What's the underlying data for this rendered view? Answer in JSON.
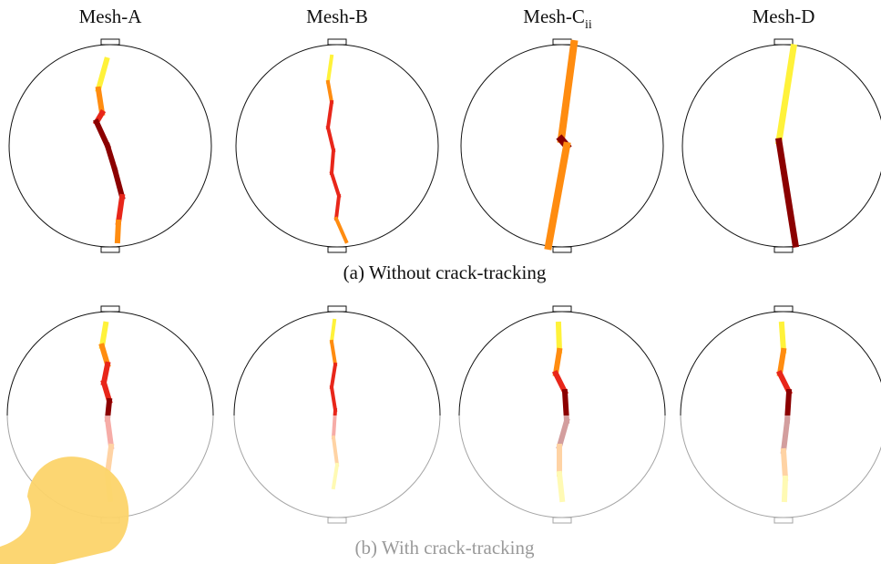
{
  "columns": [
    {
      "label": "Mesh-A"
    },
    {
      "label": "Mesh-B"
    },
    {
      "label": "Mesh-C",
      "subscript": "ii"
    },
    {
      "label": "Mesh-D"
    }
  ],
  "rows": [
    {
      "caption": "(a) Without crack-tracking"
    },
    {
      "caption": "(b) With crack-tracking"
    }
  ]
}
